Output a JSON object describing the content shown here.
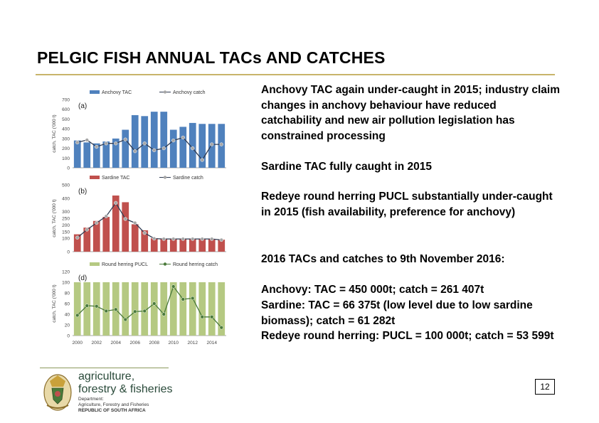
{
  "slide": {
    "title": "PELGIC FISH ANNUAL TACs AND CATCHES",
    "page_number": "12"
  },
  "text": {
    "p1": "Anchovy TAC again under-caught in 2015; industry claim changes in anchovy behaviour have reduced catchability and new air pollution legislation has constrained processing",
    "p2": "Sardine TAC fully caught in 2015",
    "p3": "Redeye round herring PUCL substantially under-caught in 2015 (fish availability, preference for anchovy)",
    "p4": "2016 TACs and catches to 9th November 2016:",
    "p5": "Anchovy: TAC = 450 000t; catch = 261 407t",
    "p6": "Sardine: TAC = 66 375t (low level due to low sardine biomass); catch = 61 282t",
    "p7": "Redeye round herring: PUCL = 100 000t; catch = 53 599t"
  },
  "footer": {
    "brand_line1": "agriculture,",
    "brand_line2": "forestry & fisheries",
    "dept_line1": "Department:",
    "dept_line2": "Agriculture, Forestry and Fisheries",
    "dept_line3": "REPUBLIC OF SOUTH AFRICA",
    "coat_of_arms_icon": "coat-of-arms-icon"
  },
  "chart_data": [
    {
      "type": "bar",
      "panel_label": "(a)",
      "ylabel": "catch, TAC ('000 t)",
      "ylim": [
        0,
        700
      ],
      "yticks": [
        0,
        100,
        200,
        300,
        400,
        500,
        600,
        700
      ],
      "x": [
        2000,
        2001,
        2002,
        2003,
        2004,
        2005,
        2006,
        2007,
        2008,
        2009,
        2010,
        2011,
        2012,
        2013,
        2014,
        2015
      ],
      "series": [
        {
          "name": "Anchovy TAC",
          "kind": "bar",
          "color": "#4f81bd",
          "values": [
            280,
            260,
            250,
            270,
            300,
            390,
            540,
            530,
            575,
            575,
            390,
            420,
            460,
            450,
            450,
            450
          ]
        },
        {
          "name": "Anchovy catch",
          "kind": "line",
          "color": "#a6a6a6",
          "values": [
            260,
            285,
            215,
            250,
            250,
            290,
            170,
            250,
            180,
            200,
            280,
            310,
            200,
            80,
            240,
            240
          ]
        }
      ],
      "grid": false,
      "legend": "top"
    },
    {
      "type": "bar",
      "panel_label": "(b)",
      "ylabel": "catch, TAC ('000 t)",
      "ylim": [
        0,
        500
      ],
      "yticks": [
        0,
        100,
        150,
        200,
        250,
        300,
        400,
        500
      ],
      "ytick_labels": [
        "0",
        "100",
        "150",
        "200",
        "250",
        "300",
        "400",
        "500"
      ],
      "x": [
        2000,
        2001,
        2002,
        2003,
        2004,
        2005,
        2006,
        2007,
        2008,
        2009,
        2010,
        2011,
        2012,
        2013,
        2014,
        2015
      ],
      "series": [
        {
          "name": "Sardine TAC",
          "kind": "bar",
          "color": "#c0504d",
          "values": [
            130,
            180,
            230,
            260,
            420,
            370,
            205,
            160,
            100,
            95,
            95,
            95,
            95,
            95,
            95,
            90
          ]
        },
        {
          "name": "Sardine catch",
          "kind": "line",
          "color": "#a6a6a6",
          "values": [
            105,
            165,
            215,
            265,
            365,
            245,
            215,
            140,
            98,
            95,
            95,
            95,
            95,
            95,
            95,
            88
          ]
        }
      ],
      "grid": false,
      "legend": "top"
    },
    {
      "type": "bar",
      "panel_label": "(d)",
      "ylabel": "catch, TAC ('000 t)",
      "ylim": [
        0,
        120
      ],
      "yticks": [
        0,
        20,
        40,
        60,
        80,
        100,
        120
      ],
      "x": [
        2000,
        2001,
        2002,
        2003,
        2004,
        2005,
        2006,
        2007,
        2008,
        2009,
        2010,
        2011,
        2012,
        2013,
        2014,
        2015
      ],
      "xtick_labels": [
        "2000",
        "2002",
        "2004",
        "2006",
        "2008",
        "2010",
        "2012",
        "2014"
      ],
      "series": [
        {
          "name": "Round herring PUCL",
          "kind": "bar",
          "color": "#b5c982",
          "values": [
            100,
            100,
            100,
            100,
            100,
            100,
            100,
            100,
            100,
            100,
            100,
            100,
            100,
            100,
            100,
            100
          ]
        },
        {
          "name": "Round herring catch",
          "kind": "line",
          "color": "#4a7a3a",
          "values": [
            38,
            56,
            55,
            46,
            49,
            30,
            45,
            46,
            60,
            40,
            92,
            68,
            70,
            35,
            35,
            15
          ]
        }
      ],
      "grid": false,
      "legend": "top"
    }
  ]
}
